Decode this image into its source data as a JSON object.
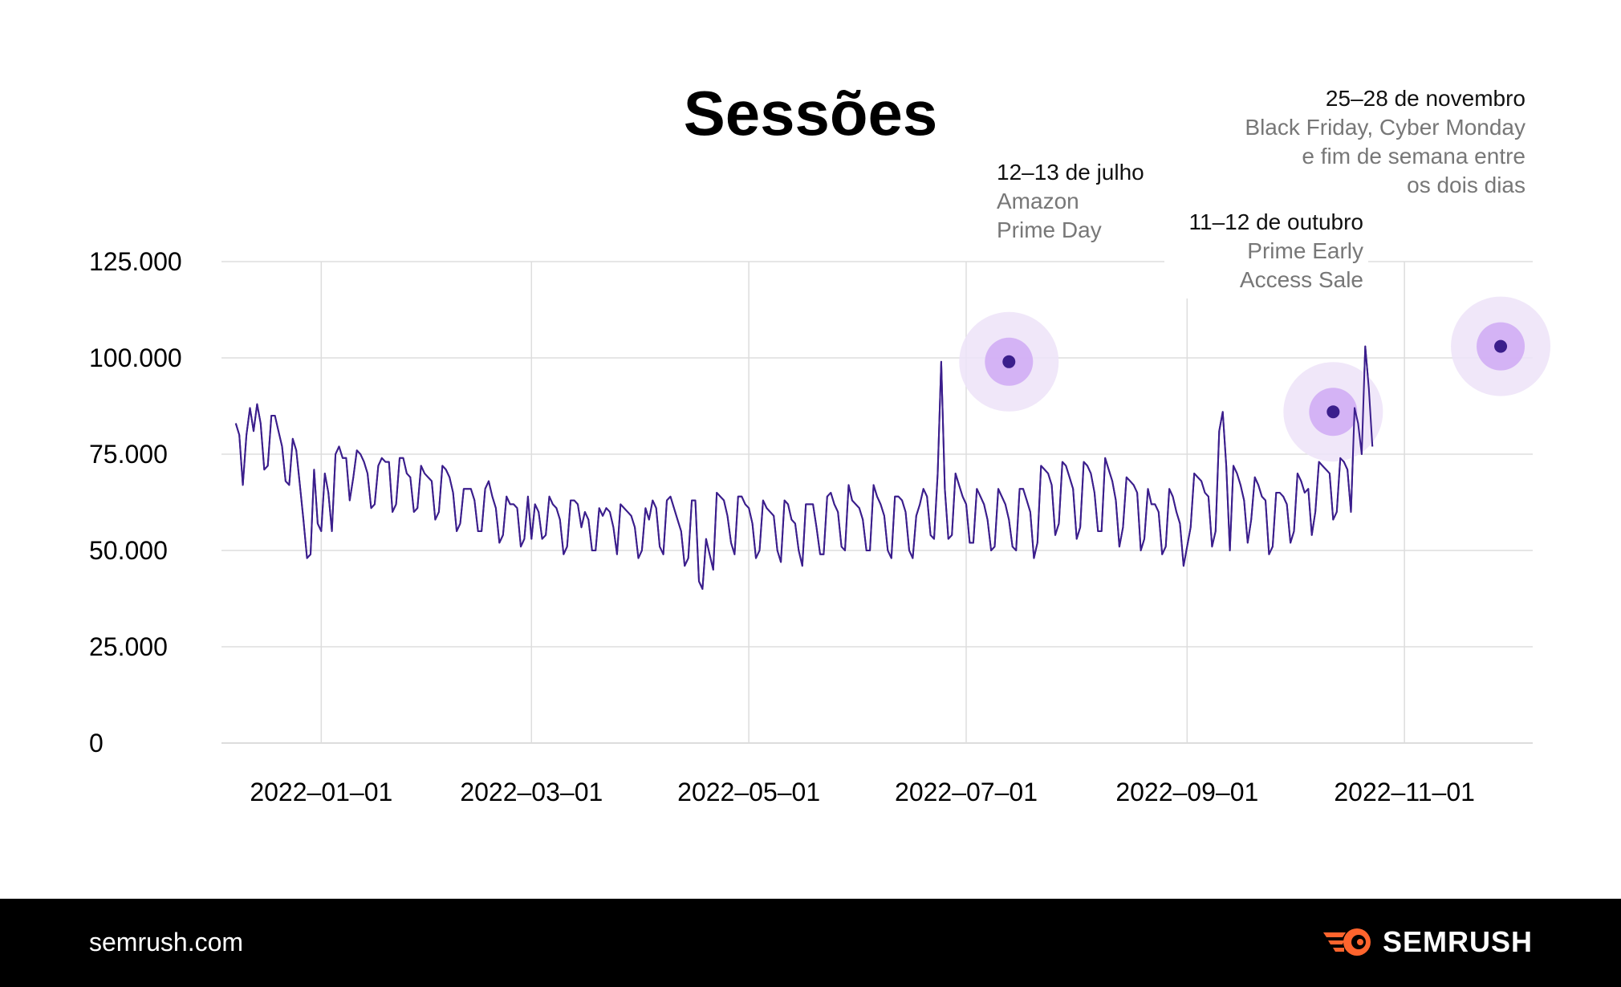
{
  "chart_data": {
    "type": "line",
    "title": "Sessões",
    "xlabel": "",
    "ylabel": "",
    "ylim": [
      0,
      125000
    ],
    "xlim": [
      "2021-12-04",
      "2022-12-07"
    ],
    "yticks": [
      0,
      25000,
      50000,
      75000,
      100000,
      125000
    ],
    "ytick_labels": [
      "0",
      "25.000",
      "50.000",
      "75.000",
      "100.000",
      "125.000"
    ],
    "xticks": [
      "2022-01-01",
      "2022-03-01",
      "2022-05-01",
      "2022-07-01",
      "2022-09-01",
      "2022-11-01"
    ],
    "xtick_labels": [
      "2022–01–01",
      "2022–03–01",
      "2022–05–01",
      "2022–07–01",
      "2022–09–01",
      "2022–11–01"
    ],
    "grid": true,
    "legend": "none",
    "line_color": "#3b1e8c",
    "series": [
      {
        "x_start": "2021-12-08",
        "values": [
          83000,
          80000,
          67000,
          80000,
          87000,
          81000,
          88000,
          83000,
          71000,
          72000,
          85000,
          85000,
          81000,
          77000,
          68000,
          67000,
          79000,
          76000,
          67000,
          58000,
          48000,
          49000,
          71000,
          57000,
          55000,
          70000,
          65000,
          55000,
          75000,
          77000,
          74000,
          74000,
          63000,
          69000,
          76000,
          75000,
          73000,
          70000,
          61000,
          62000,
          72000,
          74000,
          73000,
          73000,
          60000,
          62000,
          74000,
          74000,
          70000,
          69000,
          60000,
          61000,
          72000,
          70000,
          69000,
          68000,
          58000,
          60000,
          72000,
          71000,
          69000,
          65000,
          55000,
          57000,
          66000,
          66000,
          66000,
          63000,
          55000,
          55000,
          66000,
          68000,
          64000,
          61000,
          52000,
          54000,
          64000,
          62000,
          62000,
          61000,
          51000,
          53000,
          64000,
          53000,
          62000,
          60000,
          53000,
          54000,
          64000,
          62000,
          61000,
          58000,
          49000,
          51000,
          63000,
          63000,
          62000,
          56000,
          60000,
          58000,
          50000,
          50000,
          61000,
          59000,
          61000,
          60000,
          56000,
          49000,
          62000,
          61000,
          60000,
          59000,
          56000,
          48000,
          50000,
          61000,
          58000,
          63000,
          61000,
          51000,
          49000,
          63000,
          64000,
          61000,
          58000,
          55000,
          46000,
          48000,
          63000,
          63000,
          42000,
          40000,
          53000,
          49000,
          45000,
          65000,
          64000,
          63000,
          59000,
          52000,
          49000,
          64000,
          64000,
          62000,
          61000,
          57000,
          48000,
          50000,
          63000,
          61000,
          60000,
          59000,
          50000,
          47000,
          63000,
          62000,
          58000,
          57000,
          50000,
          46000,
          62000,
          62000,
          62000,
          56000,
          49000,
          49000,
          64000,
          65000,
          62000,
          60000,
          51000,
          50000,
          67000,
          63000,
          62000,
          61000,
          58000,
          50000,
          50000,
          67000,
          64000,
          62000,
          59000,
          50000,
          48000,
          64000,
          64000,
          63000,
          60000,
          50000,
          48000,
          59000,
          62000,
          66000,
          64000,
          54000,
          53000,
          70000,
          99000,
          66000,
          53000,
          54000,
          70000,
          67000,
          64000,
          62000,
          52000,
          52000,
          66000,
          64000,
          62000,
          58000,
          50000,
          51000,
          66000,
          64000,
          62000,
          58000,
          51000,
          50000,
          66000,
          66000,
          63000,
          60000,
          48000,
          52000,
          72000,
          71000,
          70000,
          67000,
          54000,
          57000,
          73000,
          72000,
          69000,
          66000,
          53000,
          56000,
          73000,
          72000,
          70000,
          65000,
          55000,
          55000,
          74000,
          71000,
          68000,
          63000,
          51000,
          56000,
          69000,
          68000,
          67000,
          65000,
          50000,
          53000,
          66000,
          62000,
          62000,
          60000,
          49000,
          51000,
          66000,
          64000,
          60000,
          57000,
          46000,
          51000,
          56000,
          70000,
          69000,
          68000,
          65000,
          64000,
          51000,
          55000,
          81000,
          86000,
          72000,
          50000,
          72000,
          70000,
          67000,
          63000,
          52000,
          58000,
          69000,
          67000,
          64000,
          63000,
          49000,
          51000,
          65000,
          65000,
          64000,
          62000,
          52000,
          55000,
          70000,
          68000,
          65000,
          66000,
          54000,
          60000,
          73000,
          72000,
          71000,
          70000,
          58000,
          60000,
          74000,
          73000,
          71000,
          60000,
          87000,
          83000,
          75000,
          103000,
          92000,
          77000
        ]
      }
    ],
    "highlights": [
      {
        "date": "12–13 de julho",
        "desc": [
          "Amazon",
          "Prime Day"
        ],
        "x": "2022-07-13",
        "y": 99000
      },
      {
        "date": "11–12 de outubro",
        "desc": [
          "Prime Early",
          "Access Sale"
        ],
        "x": "2022-10-12",
        "y": 86000
      },
      {
        "date": "25–28 de novembro",
        "desc": [
          "Black Friday, Cyber Monday",
          "e fim de semana entre",
          "os dois dias"
        ],
        "x": "2022-11-28",
        "y": 103000
      }
    ],
    "colors": {
      "grid": "#dddddd",
      "halo_outer": "#ede3f8",
      "halo_inner": "#cfa9f5",
      "point": "#3b1e8c"
    }
  },
  "footer": {
    "site": "semrush.com",
    "brand": "SEMRUSH",
    "brand_icon": "semrush-fireball-icon",
    "brand_color": "#ff642d"
  }
}
